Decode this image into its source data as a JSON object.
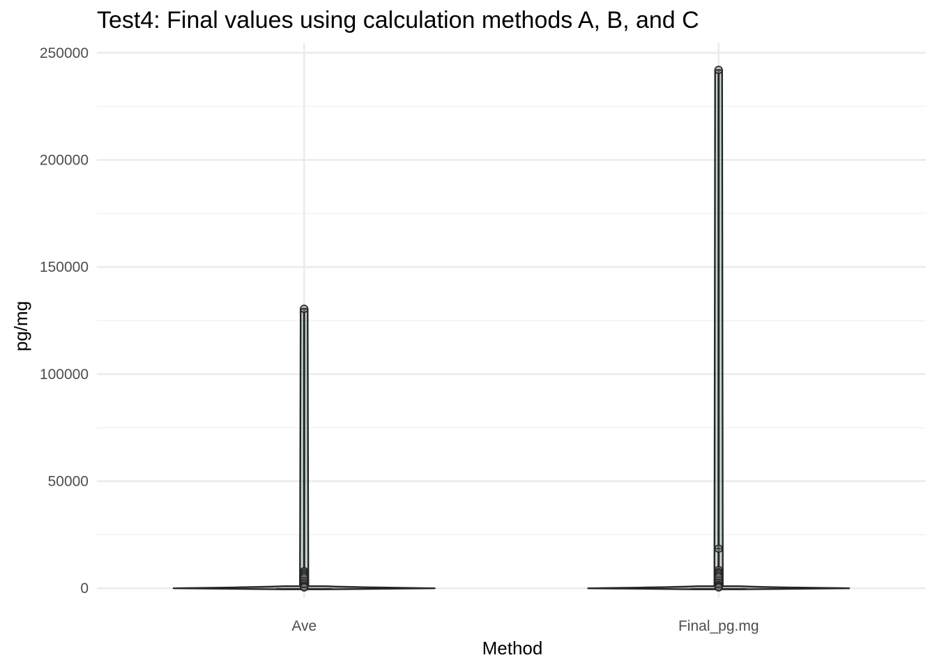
{
  "chart_data": {
    "type": "violin",
    "title": "Test4: Final values using calculation methods A, B, and C",
    "xlabel": "Method",
    "ylabel": "pg/mg",
    "categories": [
      "Ave",
      "Final_pg.mg"
    ],
    "ylim": [
      -4500,
      254500
    ],
    "y_ticks": [
      0,
      50000,
      100000,
      150000,
      200000,
      250000
    ],
    "y_tick_labels": [
      "0",
      "50000",
      "100000",
      "150000",
      "200000",
      "250000"
    ],
    "grid": true,
    "theme": "minimal",
    "violin_color": "#262626",
    "groups": [
      {
        "name": "Ave",
        "min": 0,
        "max": 130500,
        "points": [
          130500,
          8000,
          7200,
          6500,
          5800,
          5000,
          2500,
          1500,
          800,
          400
        ]
      },
      {
        "name": "Final_pg.mg",
        "min": 0,
        "max": 242000,
        "points": [
          242000,
          18500,
          8500,
          7500,
          6800,
          6000,
          5200,
          2500,
          1500,
          900,
          400
        ]
      }
    ]
  }
}
